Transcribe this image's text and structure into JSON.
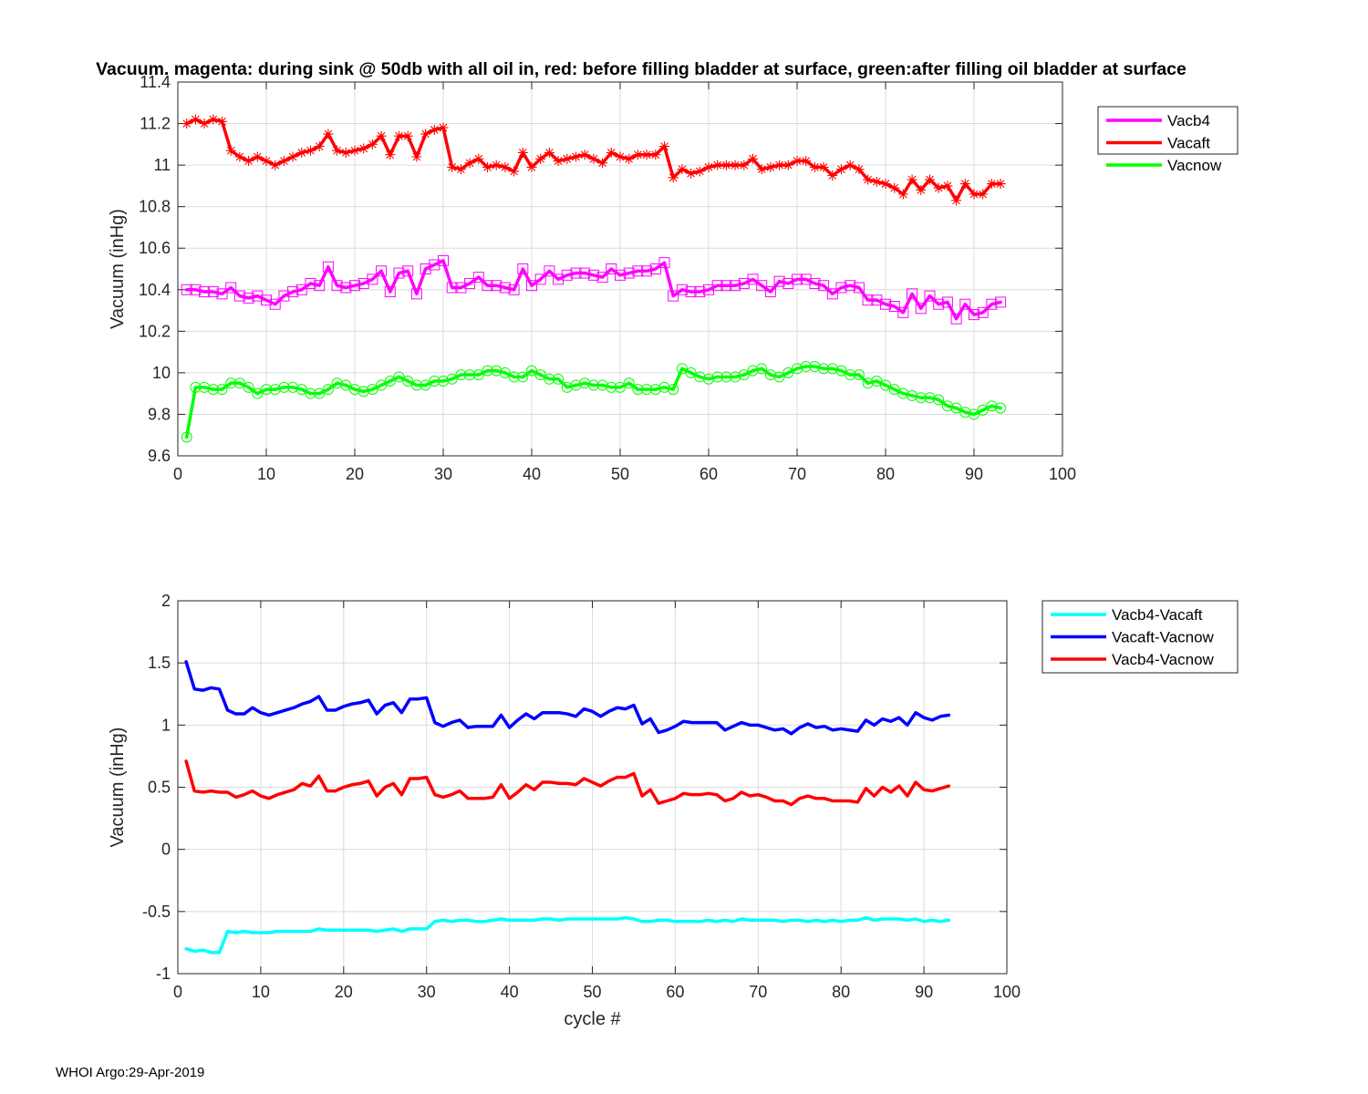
{
  "figure_title": "Vacuum. magenta: during sink @ 50db with all oil in, red: before filling bladder at surface, green:after filling oil bladder at surface",
  "footer_text": "WHOI Argo:29-Apr-2019",
  "chart_data": [
    {
      "type": "line",
      "title": "Vacuum. magenta: during sink @ 50db with all oil in, red: before filling bladder at surface, green:after filling oil bladder at surface",
      "xlabel": "",
      "ylabel": "Vacuum (inHg)",
      "xlim": [
        0,
        100
      ],
      "ylim": [
        9.6,
        11.4
      ],
      "xticks": [
        0,
        10,
        20,
        30,
        40,
        50,
        60,
        70,
        80,
        90,
        100
      ],
      "yticks": [
        9.6,
        9.8,
        10,
        10.2,
        10.4,
        10.6,
        10.8,
        11,
        11.2,
        11.4
      ],
      "grid": true,
      "legend_position": "outside-top-right",
      "series": [
        {
          "name": "Vacb4",
          "color": "#ff00ff",
          "marker": "square",
          "values": [
            10.4,
            10.4,
            10.39,
            10.39,
            10.38,
            10.41,
            10.37,
            10.36,
            10.37,
            10.35,
            10.33,
            10.37,
            10.39,
            10.4,
            10.43,
            10.42,
            10.51,
            10.42,
            10.41,
            10.42,
            10.43,
            10.45,
            10.49,
            10.39,
            10.48,
            10.49,
            10.38,
            10.5,
            10.52,
            10.54,
            10.41,
            10.41,
            10.43,
            10.46,
            10.42,
            10.42,
            10.41,
            10.4,
            10.5,
            10.42,
            10.45,
            10.49,
            10.45,
            10.47,
            10.48,
            10.48,
            10.47,
            10.46,
            10.5,
            10.47,
            10.48,
            10.49,
            10.49,
            10.5,
            10.53,
            10.37,
            10.4,
            10.39,
            10.39,
            10.4,
            10.42,
            10.42,
            10.42,
            10.43,
            10.45,
            10.42,
            10.39,
            10.44,
            10.43,
            10.45,
            10.45,
            10.43,
            10.42,
            10.38,
            10.41,
            10.42,
            10.41,
            10.35,
            10.35,
            10.33,
            10.32,
            10.29,
            10.38,
            10.31,
            10.37,
            10.33,
            10.34,
            10.26,
            10.33,
            10.28,
            10.29,
            10.33,
            10.34
          ]
        },
        {
          "name": "Vacaft",
          "color": "#ff0000",
          "marker": "asterisk",
          "values": [
            11.2,
            11.22,
            11.2,
            11.22,
            11.21,
            11.07,
            11.04,
            11.02,
            11.04,
            11.02,
            11.0,
            11.02,
            11.04,
            11.06,
            11.07,
            11.09,
            11.15,
            11.07,
            11.06,
            11.07,
            11.08,
            11.1,
            11.14,
            11.05,
            11.14,
            11.14,
            11.04,
            11.15,
            11.17,
            11.18,
            10.99,
            10.98,
            11.01,
            11.03,
            10.99,
            11.0,
            10.99,
            10.97,
            11.06,
            10.99,
            11.03,
            11.06,
            11.02,
            11.03,
            11.04,
            11.05,
            11.03,
            11.01,
            11.06,
            11.04,
            11.03,
            11.05,
            11.05,
            11.05,
            11.09,
            10.94,
            10.98,
            10.96,
            10.97,
            10.99,
            11.0,
            11.0,
            11.0,
            11.0,
            11.03,
            10.98,
            10.99,
            11.0,
            11.0,
            11.02,
            11.02,
            10.99,
            10.99,
            10.95,
            10.98,
            11.0,
            10.98,
            10.93,
            10.92,
            10.91,
            10.89,
            10.86,
            10.93,
            10.88,
            10.93,
            10.89,
            10.9,
            10.83,
            10.91,
            10.86,
            10.86,
            10.91,
            10.91
          ]
        },
        {
          "name": "Vacnow",
          "color": "#00ff00",
          "marker": "circle",
          "values": [
            9.69,
            9.93,
            9.93,
            9.92,
            9.92,
            9.95,
            9.95,
            9.93,
            9.9,
            9.92,
            9.92,
            9.93,
            9.93,
            9.92,
            9.9,
            9.9,
            9.92,
            9.95,
            9.94,
            9.92,
            9.91,
            9.92,
            9.94,
            9.96,
            9.98,
            9.96,
            9.94,
            9.94,
            9.96,
            9.96,
            9.97,
            9.99,
            9.99,
            9.99,
            10.01,
            10.01,
            10.0,
            9.98,
            9.98,
            10.01,
            9.99,
            9.97,
            9.97,
            9.93,
            9.94,
            9.95,
            9.94,
            9.94,
            9.93,
            9.93,
            9.95,
            9.92,
            9.92,
            9.92,
            9.93,
            9.92,
            10.02,
            10.0,
            9.98,
            9.97,
            9.98,
            9.98,
            9.98,
            9.99,
            10.01,
            10.02,
            9.99,
            9.98,
            10.0,
            10.02,
            10.03,
            10.03,
            10.02,
            10.02,
            10.01,
            9.99,
            9.99,
            9.95,
            9.96,
            9.94,
            9.92,
            9.9,
            9.89,
            9.88,
            9.88,
            9.87,
            9.84,
            9.83,
            9.81,
            9.8,
            9.82,
            9.84,
            9.83
          ]
        }
      ]
    },
    {
      "type": "line",
      "title": "",
      "xlabel": "cycle #",
      "ylabel": "Vacuum (inHg)",
      "xlim": [
        0,
        100
      ],
      "ylim": [
        -1,
        2
      ],
      "xticks": [
        0,
        10,
        20,
        30,
        40,
        50,
        60,
        70,
        80,
        90,
        100
      ],
      "yticks": [
        -1,
        -0.5,
        0,
        0.5,
        1,
        1.5,
        2
      ],
      "grid": true,
      "legend_position": "outside-top-right",
      "series": [
        {
          "name": "Vacb4-Vacaft",
          "color": "#00ffff",
          "values": [
            -0.8,
            -0.82,
            -0.81,
            -0.83,
            -0.83,
            -0.66,
            -0.67,
            -0.66,
            -0.67,
            -0.67,
            -0.67,
            -0.66,
            -0.66,
            -0.66,
            -0.66,
            -0.66,
            -0.64,
            -0.65,
            -0.65,
            -0.65,
            -0.65,
            -0.65,
            -0.65,
            -0.66,
            -0.65,
            -0.64,
            -0.66,
            -0.64,
            -0.64,
            -0.64,
            -0.58,
            -0.57,
            -0.58,
            -0.57,
            -0.57,
            -0.58,
            -0.58,
            -0.57,
            -0.56,
            -0.57,
            -0.57,
            -0.57,
            -0.57,
            -0.56,
            -0.56,
            -0.57,
            -0.56,
            -0.56,
            -0.56,
            -0.56,
            -0.56,
            -0.56,
            -0.56,
            -0.55,
            -0.56,
            -0.58,
            -0.58,
            -0.57,
            -0.57,
            -0.58,
            -0.58,
            -0.58,
            -0.58,
            -0.57,
            -0.58,
            -0.57,
            -0.58,
            -0.56,
            -0.57,
            -0.57,
            -0.57,
            -0.57,
            -0.58,
            -0.57,
            -0.57,
            -0.58,
            -0.57,
            -0.58,
            -0.57,
            -0.58,
            -0.57,
            -0.57,
            -0.55,
            -0.57,
            -0.56,
            -0.56,
            -0.56,
            -0.57,
            -0.56,
            -0.58,
            -0.57,
            -0.58,
            -0.57
          ]
        },
        {
          "name": "Vacaft-Vacnow",
          "color": "#0000ff",
          "values": [
            1.51,
            1.29,
            1.28,
            1.3,
            1.29,
            1.12,
            1.09,
            1.09,
            1.14,
            1.1,
            1.08,
            1.1,
            1.12,
            1.14,
            1.17,
            1.19,
            1.23,
            1.12,
            1.12,
            1.15,
            1.17,
            1.18,
            1.2,
            1.09,
            1.16,
            1.18,
            1.1,
            1.21,
            1.21,
            1.22,
            1.02,
            0.99,
            1.02,
            1.04,
            0.98,
            0.99,
            0.99,
            0.99,
            1.08,
            0.98,
            1.04,
            1.09,
            1.05,
            1.1,
            1.1,
            1.1,
            1.09,
            1.07,
            1.13,
            1.11,
            1.07,
            1.11,
            1.14,
            1.13,
            1.16,
            1.01,
            1.05,
            0.94,
            0.96,
            0.99,
            1.03,
            1.02,
            1.02,
            1.02,
            1.02,
            0.96,
            0.99,
            1.02,
            1.0,
            1.0,
            0.98,
            0.96,
            0.97,
            0.93,
            0.98,
            1.01,
            0.98,
            0.99,
            0.96,
            0.97,
            0.96,
            0.95,
            1.04,
            1.0,
            1.05,
            1.03,
            1.06,
            1.0,
            1.1,
            1.06,
            1.04,
            1.07,
            1.08
          ]
        },
        {
          "name": "Vacb4-Vacnow",
          "color": "#ff0000",
          "values": [
            0.71,
            0.47,
            0.46,
            0.47,
            0.46,
            0.46,
            0.42,
            0.44,
            0.47,
            0.43,
            0.41,
            0.44,
            0.46,
            0.48,
            0.53,
            0.51,
            0.59,
            0.47,
            0.47,
            0.5,
            0.52,
            0.53,
            0.55,
            0.43,
            0.5,
            0.53,
            0.44,
            0.57,
            0.57,
            0.58,
            0.44,
            0.42,
            0.44,
            0.47,
            0.41,
            0.41,
            0.41,
            0.42,
            0.52,
            0.41,
            0.46,
            0.52,
            0.48,
            0.54,
            0.54,
            0.53,
            0.53,
            0.52,
            0.57,
            0.54,
            0.51,
            0.55,
            0.58,
            0.58,
            0.61,
            0.43,
            0.48,
            0.37,
            0.39,
            0.41,
            0.45,
            0.44,
            0.44,
            0.45,
            0.44,
            0.39,
            0.41,
            0.46,
            0.43,
            0.44,
            0.42,
            0.39,
            0.39,
            0.36,
            0.41,
            0.43,
            0.41,
            0.41,
            0.39,
            0.39,
            0.39,
            0.38,
            0.49,
            0.43,
            0.5,
            0.46,
            0.51,
            0.43,
            0.54,
            0.48,
            0.47,
            0.49,
            0.51
          ]
        }
      ]
    }
  ]
}
